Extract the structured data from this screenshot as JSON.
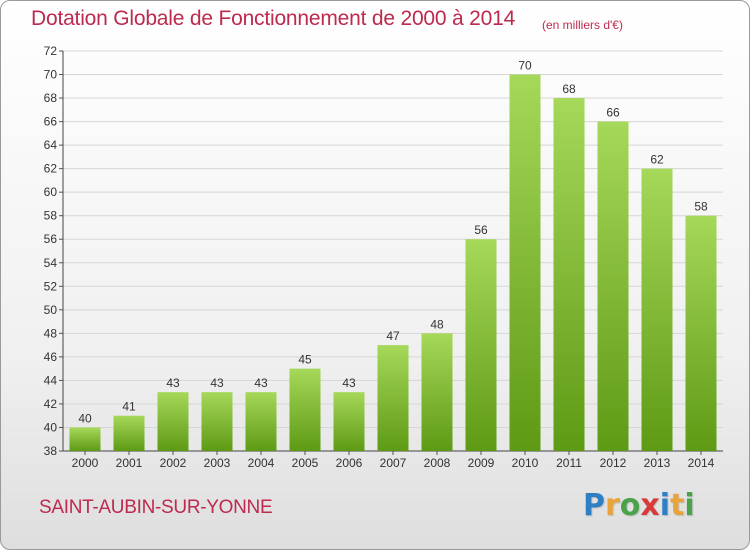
{
  "header": {
    "title": "Dotation Globale de Fonctionnement de 2000 à 2014",
    "unit_note": "(en milliers d'€)"
  },
  "footer": {
    "commune": "SAINT-AUBIN-SUR-YONNE",
    "logo_letters": [
      {
        "char": "P",
        "color": "#2f7fc4"
      },
      {
        "char": "r",
        "color": "#e8a33a"
      },
      {
        "char": "o",
        "color": "#4aa24a"
      },
      {
        "char": "x",
        "color": "#d83a3a"
      },
      {
        "char": "i",
        "color": "#2f7fc4"
      },
      {
        "char": "t",
        "color": "#e8a33a"
      },
      {
        "char": "i",
        "color": "#4aa24a"
      }
    ]
  },
  "colors": {
    "bar_light": "#a6d85a",
    "bar_dark": "#5e9a14",
    "grid": "#d6d6d6",
    "title": "#bd2a4d"
  },
  "chart_data": {
    "type": "bar",
    "title": "Dotation Globale de Fonctionnement de 2000 à 2014",
    "subtitle": "(en milliers d'€)",
    "xlabel": "",
    "ylabel": "",
    "categories": [
      "2000",
      "2001",
      "2002",
      "2003",
      "2004",
      "2005",
      "2006",
      "2007",
      "2008",
      "2009",
      "2010",
      "2011",
      "2012",
      "2013",
      "2014"
    ],
    "values": [
      40,
      41,
      43,
      43,
      43,
      45,
      43,
      47,
      48,
      56,
      70,
      68,
      66,
      62,
      58
    ],
    "ylim": [
      38,
      72
    ],
    "yticks": [
      38,
      40,
      42,
      44,
      46,
      48,
      50,
      52,
      54,
      56,
      58,
      60,
      62,
      64,
      66,
      68,
      70,
      72
    ],
    "grid": true,
    "legend": "none"
  }
}
